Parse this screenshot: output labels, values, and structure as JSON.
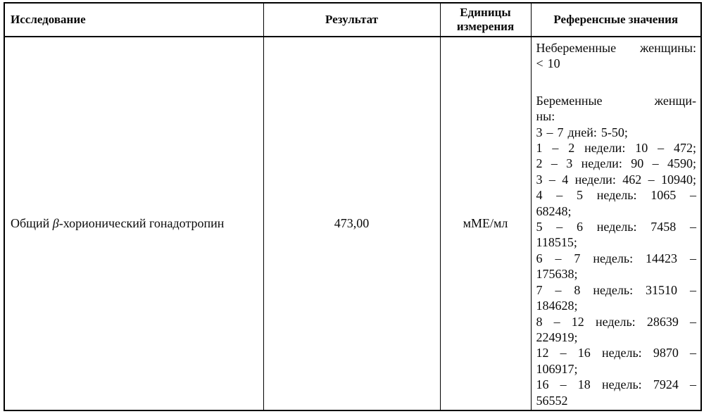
{
  "table": {
    "header": {
      "test": "Исследование",
      "result": "Результат",
      "units": "Единицы измерения",
      "reference": "Референсные значения"
    },
    "row": {
      "test_prefix": "Общий ",
      "test_beta": "β",
      "test_suffix": "-хорионический гонадотропин",
      "result": "473,00",
      "units": "мМЕ/мл",
      "reference_lines": [
        {
          "text": "Небеременные женщины:",
          "justify": true
        },
        {
          "text": "< 10",
          "justify": false
        },
        {
          "text": "",
          "justify": false
        },
        {
          "text": "Беременные женщи-",
          "justify": true
        },
        {
          "text": "ны:",
          "justify": false
        },
        {
          "text": "3 – 7 дней: 5-50;",
          "justify": false
        },
        {
          "text": "1 – 2 недели: 10 – 472;",
          "justify": true
        },
        {
          "text": "2 – 3 недели: 90 – 4590;",
          "justify": true
        },
        {
          "text": "3 – 4 недели: 462 – 10940;",
          "justify": true
        },
        {
          "text": "4 – 5 недель: 1065 –",
          "justify": true
        },
        {
          "text": "68248;",
          "justify": false
        },
        {
          "text": "5 – 6 недель: 7458 –",
          "justify": true
        },
        {
          "text": "118515;",
          "justify": false
        },
        {
          "text": "6 – 7 недель: 14423 –",
          "justify": true
        },
        {
          "text": "175638;",
          "justify": false
        },
        {
          "text": "7 – 8 недель: 31510 –",
          "justify": true
        },
        {
          "text": "184628;",
          "justify": false
        },
        {
          "text": "8 – 12 недель: 28639 –",
          "justify": true
        },
        {
          "text": "224919;",
          "justify": false
        },
        {
          "text": "12 – 16 недель: 9870 –",
          "justify": true
        },
        {
          "text": "106917;",
          "justify": false
        },
        {
          "text": "16 – 18 недель: 7924 –",
          "justify": true
        },
        {
          "text": "56552",
          "justify": false
        }
      ]
    }
  }
}
